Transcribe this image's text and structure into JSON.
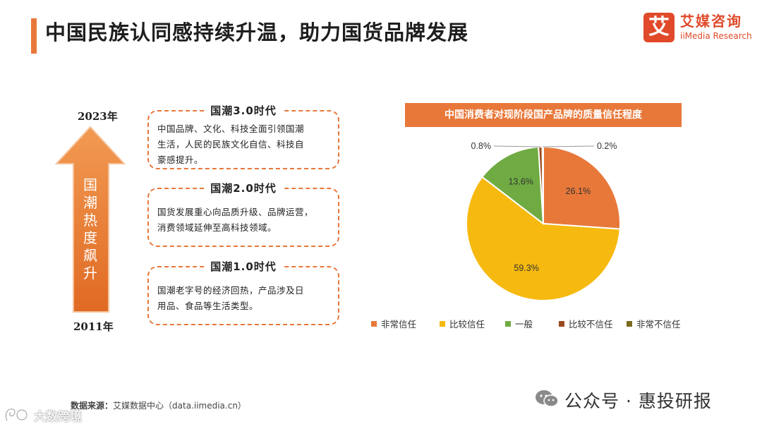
{
  "page": {
    "title": "中国民族认同感持续升温，助力国货品牌发展"
  },
  "logo": {
    "mark": "艾",
    "cn": "艾媒咨询",
    "en": "iiMedia Research"
  },
  "timeline": {
    "year_top": "2023年",
    "year_bottom": "2011年",
    "arrow_chars": [
      "国",
      "潮",
      "热",
      "度",
      "飙",
      "升"
    ],
    "eras": [
      {
        "title": "国潮3.0时代",
        "lines": [
          "中国品牌、文化、科技全面引领国潮",
          "生活，人民的民族文化自信、科技自",
          "豪感提升。"
        ]
      },
      {
        "title": "国潮2.0时代",
        "lines": [
          "国货发展重心向品质升级、品牌运营，",
          "消费领域延伸至高科技领域。"
        ]
      },
      {
        "title": "国潮1.0时代",
        "lines": [
          "国潮老字号的经济回热，产品涉及日",
          "用品、食品等生活类型。"
        ]
      }
    ]
  },
  "chart_data": {
    "type": "pie",
    "title": "中国消费者对现阶段国产品牌的质量信任程度",
    "categories": [
      "非常信任",
      "比较信任",
      "一般",
      "比较不信任",
      "非常不信任"
    ],
    "values": [
      26.1,
      59.3,
      13.6,
      0.8,
      0.2
    ],
    "labels": [
      "26.1%",
      "59.3%",
      "13.6%",
      "0.8%",
      "0.2%"
    ],
    "colors": [
      "#e8783a",
      "#f6b90f",
      "#6fab42",
      "#9a4a1e",
      "#7a6a1e"
    ],
    "legend_position": "bottom"
  },
  "footer": {
    "source_label": "数据来源：",
    "source_text": "艾媒数据中心（data.iimedia.cn）",
    "wechat_text": "公众号 · 惠投研报",
    "watermark_text": "大数跨境"
  }
}
